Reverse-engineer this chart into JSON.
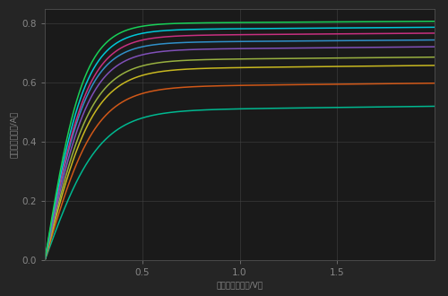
{
  "background_color": "#252525",
  "axes_bg_color": "#1a1a1a",
  "grid_color": "#484848",
  "tick_color": "#888888",
  "xlabel": "漏电压（漏电压/V）",
  "ylabel": "漏电流（漏电流/A）",
  "xlim": [
    0,
    2.0
  ],
  "ylim": [
    0,
    0.85
  ],
  "xticks": [
    0.5,
    1.0,
    1.5
  ],
  "yticks": [
    0,
    0.2,
    0.4,
    0.6,
    0.8
  ],
  "figsize": [
    5.0,
    3.3
  ],
  "dpi": 100,
  "curves": [
    {
      "color": "#00b890",
      "Isat": 0.505,
      "Vknee": 0.28,
      "slope": 0.008
    },
    {
      "color": "#d05818",
      "Isat": 0.585,
      "Vknee": 0.26,
      "slope": 0.007
    },
    {
      "color": "#c8b820",
      "Isat": 0.645,
      "Vknee": 0.25,
      "slope": 0.007
    },
    {
      "color": "#98b040",
      "Isat": 0.675,
      "Vknee": 0.24,
      "slope": 0.006
    },
    {
      "color": "#8050b8",
      "Isat": 0.71,
      "Vknee": 0.23,
      "slope": 0.006
    },
    {
      "color": "#3090c8",
      "Isat": 0.735,
      "Vknee": 0.22,
      "slope": 0.005
    },
    {
      "color": "#c83080",
      "Isat": 0.758,
      "Vknee": 0.22,
      "slope": 0.005
    },
    {
      "color": "#00c8d8",
      "Isat": 0.778,
      "Vknee": 0.21,
      "slope": 0.005
    },
    {
      "color": "#18d058",
      "Isat": 0.8,
      "Vknee": 0.2,
      "slope": 0.004
    }
  ]
}
